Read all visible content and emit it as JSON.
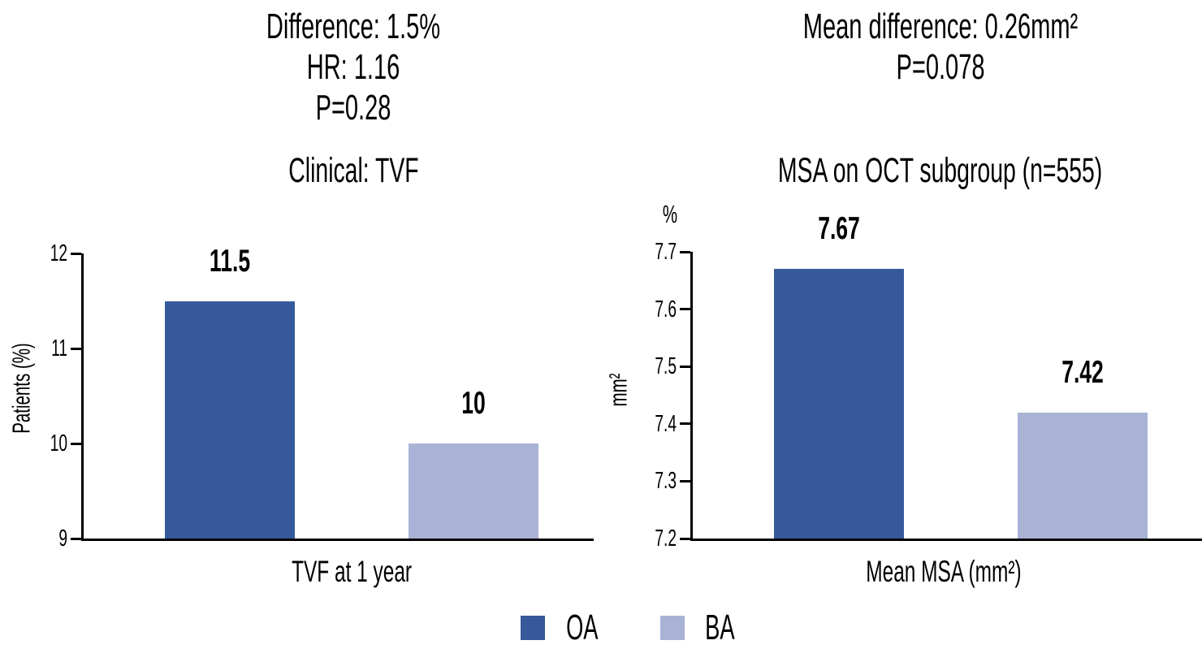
{
  "figure": {
    "background": "#ffffff",
    "colors": {
      "oa": "#36599b",
      "ba": "#a9b3d6",
      "axis": "#000000",
      "text": "#000000"
    }
  },
  "chart_data": [
    {
      "type": "bar",
      "panel": "left",
      "annotation_lines": [
        "Difference: 1.5%",
        "HR: 1.16",
        "P=0.28"
      ],
      "title": "Clinical: TVF",
      "ylabel": "Patients (%)",
      "xlabel": "TVF at 1 year",
      "categories": [
        "OA",
        "BA"
      ],
      "values": [
        11.5,
        10
      ],
      "value_labels": [
        "11.5",
        "10"
      ],
      "ylim": [
        9,
        12
      ],
      "yticks": [
        9,
        10,
        11,
        12
      ],
      "grid": false,
      "legend_position": "bottom-center"
    },
    {
      "type": "bar",
      "panel": "right",
      "annotation_lines": [
        "Mean difference: 0.26mm²",
        "P=0.078"
      ],
      "title": "MSA on OCT subgroup (n=555)",
      "ylabel": "mm²",
      "y_axis_top_label": "%",
      "xlabel": "Mean MSA (mm²)",
      "categories": [
        "OA",
        "BA"
      ],
      "values": [
        7.67,
        7.42
      ],
      "value_labels": [
        "7.67",
        "7.42"
      ],
      "ylim": [
        7.2,
        7.7
      ],
      "yticks": [
        7.2,
        7.3,
        7.4,
        7.5,
        7.6,
        7.7
      ],
      "grid": false,
      "legend_position": "bottom-center"
    }
  ],
  "legend": {
    "items": [
      {
        "label": "OA",
        "color_key": "oa"
      },
      {
        "label": "BA",
        "color_key": "ba"
      }
    ]
  }
}
